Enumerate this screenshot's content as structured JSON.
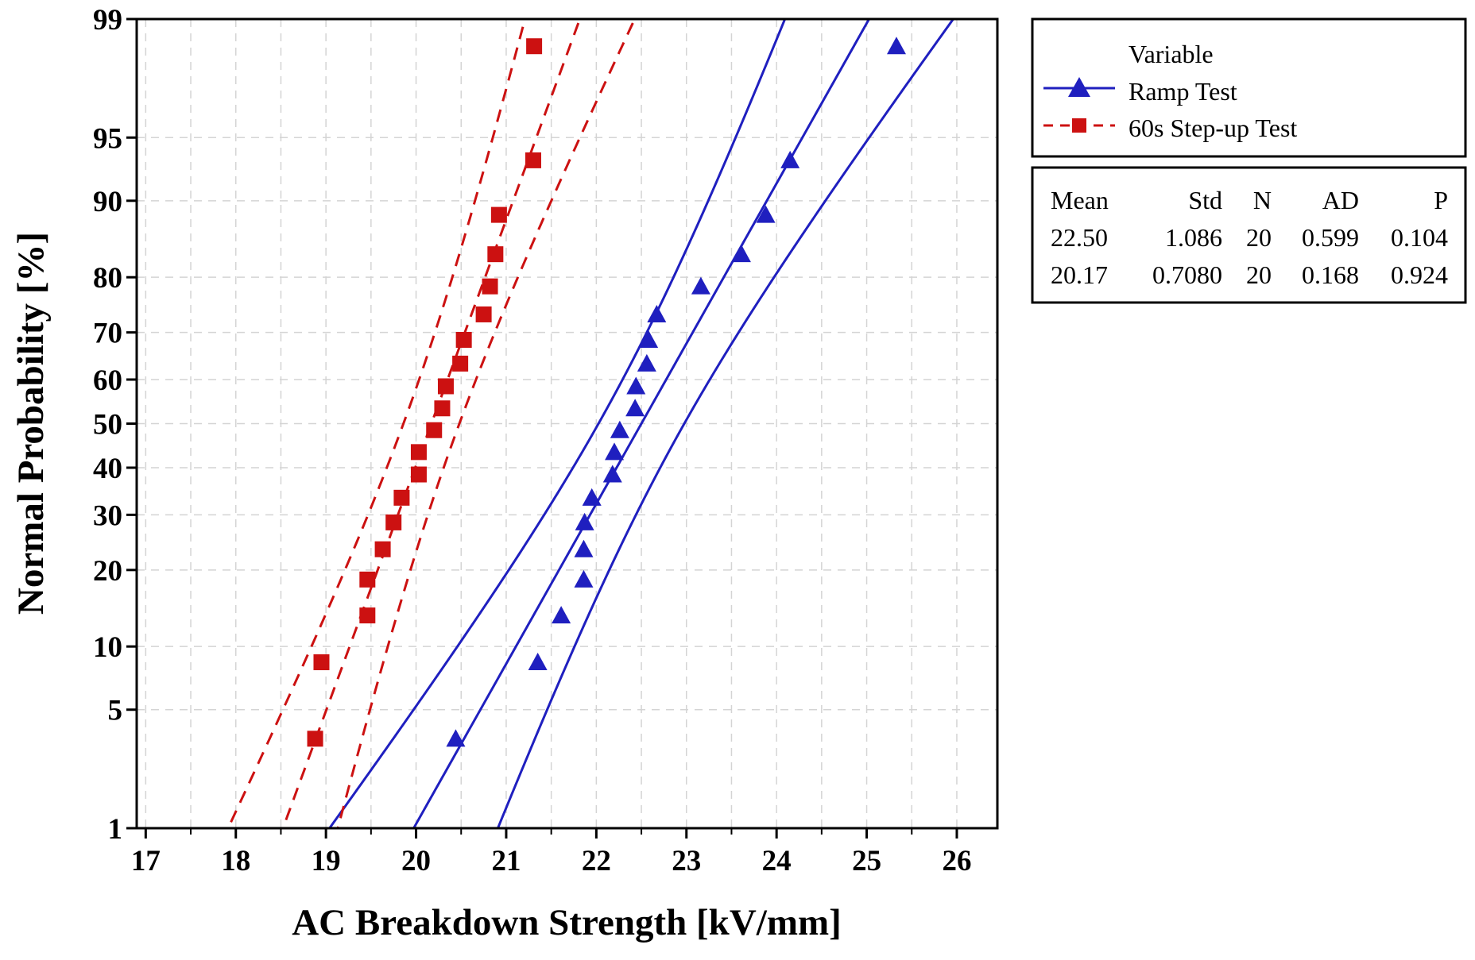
{
  "chart_data": {
    "type": "scatter",
    "subtype": "normal-probability-plot",
    "title": "",
    "xlabel": "AC Breakdown Strength [kV/mm]",
    "ylabel": "Normal Probability [%]",
    "xlim": [
      16.9,
      26.45
    ],
    "ylim": [
      1,
      99
    ],
    "y_scale": "normal-probability",
    "grid": true,
    "x_ticks": [
      17,
      18,
      19,
      20,
      21,
      22,
      23,
      24,
      25,
      26
    ],
    "x_tick_labels": [
      "17",
      "18",
      "19",
      "20",
      "21",
      "22",
      "23",
      "24",
      "25",
      "26"
    ],
    "y_ticks": [
      1,
      5,
      10,
      20,
      30,
      40,
      50,
      60,
      70,
      80,
      90,
      95,
      99
    ],
    "y_tick_labels": [
      "1",
      "5",
      "10",
      "20",
      "30",
      "40",
      "50",
      "60",
      "70",
      "80",
      "90",
      "95",
      "99"
    ],
    "x_minor_ticks": [
      17.5,
      18.5,
      19.5,
      20.5,
      21.5,
      22.5,
      23.5,
      24.5,
      25.5
    ],
    "legend": {
      "title": "Variable",
      "placement": "outside-top-right",
      "entries": [
        {
          "name": "Ramp Test",
          "color": "#1f1fbf",
          "marker": "triangle",
          "line": "solid"
        },
        {
          "name": "60s Step-up Test",
          "color": "#cc1111",
          "marker": "square",
          "line": "dashed"
        }
      ]
    },
    "stats_table": {
      "headers": [
        "Mean",
        "Std",
        "N",
        "AD",
        "P"
      ],
      "rows": [
        [
          "22.50",
          "1.086",
          "20",
          "0.599",
          "0.104"
        ],
        [
          "20.17",
          "0.7080",
          "20",
          "0.168",
          "0.924"
        ]
      ]
    },
    "series": [
      {
        "name": "Ramp Test",
        "color": "#1f1fbf",
        "marker": "triangle",
        "line_style": "solid",
        "mean": 22.5,
        "std": 1.086,
        "n": 20,
        "points": [
          {
            "x": 20.44,
            "p": 3.5
          },
          {
            "x": 21.35,
            "p": 8.5
          },
          {
            "x": 21.61,
            "p": 13.5
          },
          {
            "x": 21.86,
            "p": 18.5
          },
          {
            "x": 21.86,
            "p": 23.5
          },
          {
            "x": 21.87,
            "p": 28.5
          },
          {
            "x": 21.95,
            "p": 33.5
          },
          {
            "x": 22.18,
            "p": 38.5
          },
          {
            "x": 22.2,
            "p": 43.5
          },
          {
            "x": 22.26,
            "p": 48.5
          },
          {
            "x": 22.43,
            "p": 53.5
          },
          {
            "x": 22.44,
            "p": 58.5
          },
          {
            "x": 22.56,
            "p": 63.5
          },
          {
            "x": 22.58,
            "p": 68.5
          },
          {
            "x": 22.67,
            "p": 73.5
          },
          {
            "x": 23.16,
            "p": 78.5
          },
          {
            "x": 23.61,
            "p": 83.5
          },
          {
            "x": 23.88,
            "p": 88.5
          },
          {
            "x": 24.15,
            "p": 93.5
          },
          {
            "x": 25.33,
            "p": 98.5
          }
        ]
      },
      {
        "name": "60s Step-up Test",
        "color": "#cc1111",
        "marker": "square",
        "line_style": "dashed",
        "mean": 20.17,
        "std": 0.708,
        "n": 20,
        "points": [
          {
            "x": 18.88,
            "p": 3.5
          },
          {
            "x": 18.95,
            "p": 8.5
          },
          {
            "x": 19.46,
            "p": 13.5
          },
          {
            "x": 19.46,
            "p": 18.5
          },
          {
            "x": 19.63,
            "p": 23.5
          },
          {
            "x": 19.75,
            "p": 28.5
          },
          {
            "x": 19.84,
            "p": 33.5
          },
          {
            "x": 20.03,
            "p": 38.5
          },
          {
            "x": 20.03,
            "p": 43.5
          },
          {
            "x": 20.2,
            "p": 48.5
          },
          {
            "x": 20.29,
            "p": 53.5
          },
          {
            "x": 20.33,
            "p": 58.5
          },
          {
            "x": 20.49,
            "p": 63.5
          },
          {
            "x": 20.53,
            "p": 68.5
          },
          {
            "x": 20.75,
            "p": 73.5
          },
          {
            "x": 20.82,
            "p": 78.5
          },
          {
            "x": 20.88,
            "p": 83.5
          },
          {
            "x": 20.92,
            "p": 88.5
          },
          {
            "x": 21.3,
            "p": 93.5
          },
          {
            "x": 21.31,
            "p": 98.5
          }
        ]
      }
    ],
    "confidence_band_z": 1.96
  }
}
